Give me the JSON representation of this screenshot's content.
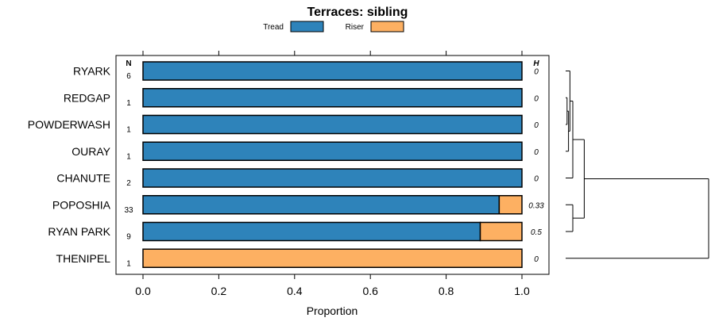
{
  "chart_data": {
    "type": "bar",
    "orientation": "horizontal",
    "stacked": true,
    "title": "Terraces: sibling",
    "xlabel": "Proportion",
    "ylabel": "",
    "xlim": [
      0,
      1
    ],
    "xticks": [
      "0.0",
      "0.2",
      "0.4",
      "0.6",
      "0.8",
      "1.0"
    ],
    "legend": {
      "position": "top",
      "entries": [
        {
          "name": "Tread",
          "color": "#2e83ba"
        },
        {
          "name": "Riser",
          "color": "#fdb062"
        }
      ]
    },
    "n_header": "N",
    "h_header": "H",
    "categories": [
      "RYARK",
      "REDGAP",
      "POWDERWASH",
      "OURAY",
      "CHANUTE",
      "POPOSHIA",
      "RYAN PARK",
      "THENIPEL"
    ],
    "n_values": [
      "6",
      "1",
      "1",
      "1",
      "2",
      "33",
      "9",
      "1"
    ],
    "h_values": [
      "0",
      "0",
      "0",
      "0",
      "0",
      "0.33",
      "0.5",
      "0"
    ],
    "series": [
      {
        "name": "Tread",
        "values": [
          1.0,
          1.0,
          1.0,
          1.0,
          1.0,
          0.94,
          0.89,
          0.0
        ]
      },
      {
        "name": "Riser",
        "values": [
          0.0,
          0.0,
          0.0,
          0.0,
          0.0,
          0.06,
          0.11,
          1.0
        ]
      }
    ],
    "dendrogram": {
      "merges": [
        {
          "left": "REDGAP",
          "right": "POWDERWASH",
          "height": 0.01
        },
        {
          "left": "OURAY",
          "right": "REDGAP+POWDERWASH",
          "height": 0.02
        },
        {
          "left": "RYARK",
          "right": "OURAY+REDGAP+POWDERWASH",
          "height": 0.03
        },
        {
          "left": "RYARK+OURAY+REDGAP+POWDERWASH",
          "right": "CHANUTE",
          "height": 0.05
        },
        {
          "left": "POPOSHIA",
          "right": "RYAN PARK",
          "height": 0.05
        },
        {
          "left": "RYARK..CHANUTE",
          "right": "POPOSHIA+RYAN PARK",
          "height": 0.13
        },
        {
          "left": "RYARK..RYAN PARK",
          "right": "THENIPEL",
          "height": 1.0
        }
      ]
    }
  }
}
